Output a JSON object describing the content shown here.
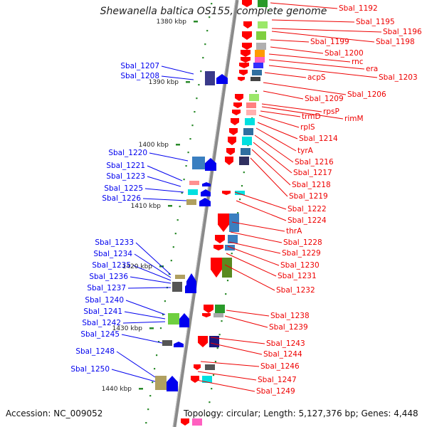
{
  "title": "Shewanella baltica OS155, complete genome",
  "footer": {
    "accession": "Accession: NC_009052",
    "topology": "Topology: circular; Length: 5,127,376 bp; Genes: 4,448"
  },
  "ruler": [
    "1380 kbp",
    "1390 kbp",
    "1400 kbp",
    "1410 kbp",
    "1420 kbp",
    "1430 kbp",
    "1440 kbp"
  ],
  "left_labels": [
    "Sbal_1207",
    "Sbal_1208",
    "Sbal_1220",
    "Sbal_1221",
    "Sbal_1223",
    "Sbal_1225",
    "Sbal_1226",
    "Sbal_1233",
    "Sbal_1234",
    "Sbal_1235",
    "Sbal_1236",
    "Sbal_1237",
    "Sbal_1240",
    "Sbal_1241",
    "Sbal_1242",
    "Sbal_1245",
    "Sbal_1248",
    "Sbal_1250"
  ],
  "right_labels": [
    "Sbal_1192",
    "Sbal_1195",
    "Sbal_1196",
    "Sbal_1198",
    "Sbal_1199",
    "Sbal_1200",
    "rnc",
    "era",
    "Sbal_1203",
    "acpS",
    "Sbal_1206",
    "Sbal_1209",
    "rpsP",
    "rimM",
    "trmD",
    "rplS",
    "Sbal_1214",
    "tyrA",
    "Sbal_1216",
    "Sbal_1217",
    "Sbal_1218",
    "Sbal_1219",
    "Sbal_1222",
    "Sbal_1224",
    "thrA",
    "Sbal_1228",
    "Sbal_1229",
    "Sbal_1230",
    "Sbal_1231",
    "Sbal_1232",
    "Sbal_1238",
    "Sbal_1239",
    "Sbal_1243",
    "Sbal_1244",
    "Sbal_1246",
    "Sbal_1247",
    "Sbal_1249"
  ],
  "colors": {
    "forward": "#0000ee",
    "reverse": "#ee0000",
    "tick": "#2a8a2a",
    "axis": "#888888"
  }
}
